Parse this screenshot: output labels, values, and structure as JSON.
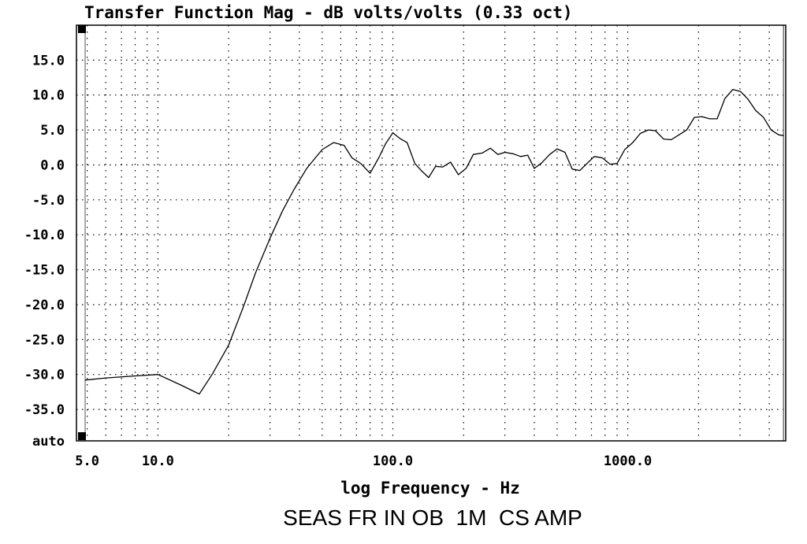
{
  "chart_data": {
    "type": "line",
    "title": "Transfer Function Mag - dB volts/volts (0.33 oct)",
    "xlabel": "log Frequency - Hz",
    "caption": "SEAS FR IN OB  1M  CS AMP",
    "x_scale": "log",
    "xlim": [
      4.5,
      4700
    ],
    "ylim": [
      -39.5,
      20
    ],
    "x_tick_labels": [
      {
        "value": 5,
        "label": "5.0"
      },
      {
        "value": 10,
        "label": "10.0"
      },
      {
        "value": 100,
        "label": "100.0"
      },
      {
        "value": 1000,
        "label": "1000.0"
      }
    ],
    "y_tick_labels": [
      {
        "value": 15,
        "label": "15.0"
      },
      {
        "value": 10,
        "label": "10.0"
      },
      {
        "value": 5,
        "label": "5.0"
      },
      {
        "value": 0,
        "label": "0.0"
      },
      {
        "value": -5,
        "label": "-5.0"
      },
      {
        "value": -10,
        "label": "-10.0"
      },
      {
        "value": -15,
        "label": "-15.0"
      },
      {
        "value": -20,
        "label": "-20.0"
      },
      {
        "value": -25,
        "label": "-25.0"
      },
      {
        "value": -30,
        "label": "-30.0"
      },
      {
        "value": -35,
        "label": "-35.0"
      },
      {
        "value": -39.5,
        "label": "auto"
      }
    ],
    "grid": true,
    "series": [
      {
        "color": "#000000",
        "x": [
          4.9,
          6,
          8,
          10,
          12.5,
          15,
          17,
          20,
          23,
          26,
          30,
          34,
          38,
          43,
          50,
          56,
          62,
          67,
          73,
          80,
          87,
          93,
          100,
          107,
          115,
          124,
          132,
          142,
          152,
          163,
          176,
          190,
          205,
          220,
          240,
          260,
          280,
          300,
          325,
          350,
          375,
          400,
          430,
          465,
          500,
          540,
          580,
          625,
          670,
          720,
          780,
          840,
          900,
          970,
          1050,
          1130,
          1220,
          1310,
          1420,
          1530,
          1650,
          1780,
          1920,
          2070,
          2230,
          2400,
          2590,
          2800,
          3020,
          3250,
          3500,
          3780,
          4070,
          4390,
          4600
        ],
        "y": [
          -30.8,
          -30.5,
          -30.2,
          -30.0,
          -31.5,
          -32.8,
          -30,
          -25.8,
          -20.5,
          -15.5,
          -10.5,
          -6.5,
          -3.5,
          -0.5,
          2.2,
          3.2,
          2.8,
          1.0,
          0.2,
          -1.2,
          1.0,
          3.0,
          4.6,
          3.8,
          3.2,
          0.2,
          -0.8,
          -1.8,
          -0.2,
          -0.3,
          0.4,
          -1.4,
          -0.5,
          1.5,
          1.7,
          2.4,
          1.5,
          1.8,
          1.6,
          1.2,
          1.4,
          -0.5,
          0.3,
          1.5,
          2.3,
          1.8,
          -0.6,
          -0.8,
          0.2,
          1.2,
          1.0,
          0.1,
          0.2,
          2.2,
          3.2,
          4.5,
          5.0,
          4.9,
          3.7,
          3.6,
          4.3,
          5.0,
          6.8,
          6.9,
          6.6,
          6.6,
          9.5,
          10.8,
          10.5,
          9.4,
          7.8,
          6.8,
          5.0,
          4.3,
          4.2
        ]
      }
    ]
  }
}
